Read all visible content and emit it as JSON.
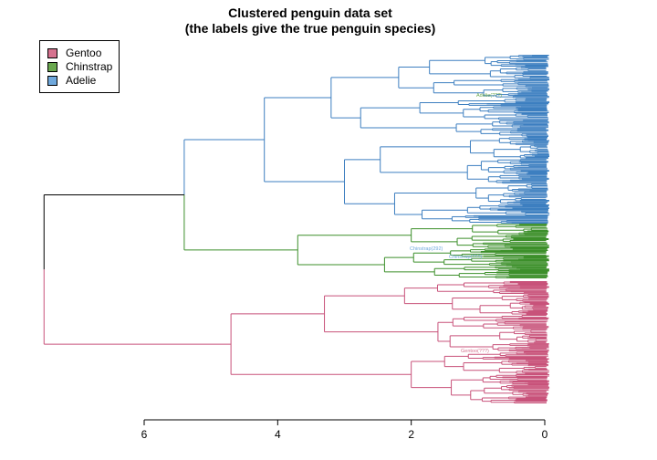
{
  "chart_data": {
    "type": "dendrogram",
    "title": "Clustered penguin data set",
    "subtitle": "(the labels give the true penguin species)",
    "xlabel": "",
    "ylabel": "",
    "xlim": [
      6.6,
      -0.5
    ],
    "x_ticks": [
      6,
      4,
      2,
      0
    ],
    "x_tick_labels": [
      "6",
      "4",
      "2",
      "0"
    ],
    "legend": {
      "position": "top-left",
      "entries": [
        {
          "label": "Gentoo",
          "color": "#d6728f"
        },
        {
          "label": "Chinstrap",
          "color": "#6aa84f"
        },
        {
          "label": "Adelie",
          "color": "#6fa8dc"
        }
      ]
    },
    "branch_colors": {
      "root": "#000000",
      "cluster_1": "#3d7fc0",
      "cluster_2": "#3c8f2a",
      "cluster_3": "#c8527a"
    },
    "merges": [
      {
        "cluster": "root",
        "height": 7.5,
        "children": [
          "A",
          "gentoo"
        ]
      },
      {
        "cluster": "cluster_1",
        "height": 5.4,
        "children": [
          "adelie_chinstrap",
          "mixed_small"
        ]
      },
      {
        "cluster": "cluster_1",
        "height": 4.2,
        "children": [
          "blue_top",
          "blue_mid"
        ]
      },
      {
        "cluster": "cluster_2",
        "height": 3.7,
        "children": [
          "chinstrap_a",
          "chinstrap_b"
        ]
      },
      {
        "cluster": "cluster_3",
        "height": 4.7,
        "children": [
          "gentoo_a",
          "gentoo_b"
        ]
      },
      {
        "cluster": "cluster_3",
        "height": 3.3,
        "children": [
          "gentoo_a1",
          "gentoo_a2"
        ]
      },
      {
        "cluster": "cluster_3",
        "height": 2.0,
        "children": [
          "gentoo_b1",
          "gentoo_b2"
        ]
      }
    ],
    "leaf_labels_legible": [
      "Chinstrap(292)",
      "Chinstrap(???)",
      "Adelie(???)",
      "Gentoo(???)"
    ]
  }
}
